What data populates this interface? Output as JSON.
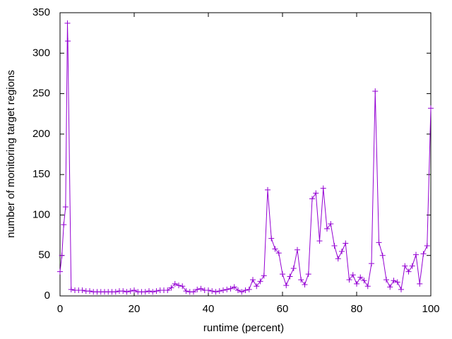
{
  "chart_data": {
    "type": "line",
    "xlabel": "runtime (percent)",
    "ylabel": "number of monitoring target regions",
    "xlim": [
      0,
      100
    ],
    "xticks": [
      0,
      20,
      40,
      60,
      80,
      100
    ],
    "ylim": [
      0,
      350
    ],
    "yticks": [
      0,
      50,
      100,
      150,
      200,
      250,
      300,
      350
    ],
    "series": [
      {
        "color": "#9400d3",
        "x": [
          0,
          0.5,
          1,
          1.5,
          2,
          2.1,
          3,
          4,
          5,
          6,
          7,
          8,
          9,
          10,
          11,
          12,
          13,
          14,
          15,
          16,
          17,
          18,
          19,
          20,
          21,
          22,
          23,
          24,
          25,
          26,
          27,
          28,
          29,
          30,
          31,
          32,
          33,
          34,
          35,
          36,
          37,
          38,
          39,
          40,
          41,
          42,
          43,
          44,
          45,
          46,
          47,
          48,
          49,
          50,
          51,
          52,
          53,
          54,
          55,
          56,
          57,
          58,
          59,
          60,
          61,
          62,
          63,
          64,
          65,
          66,
          67,
          68,
          69,
          70,
          71,
          72,
          73,
          74,
          75,
          76,
          77,
          78,
          79,
          80,
          81,
          82,
          83,
          84,
          85,
          86,
          87,
          88,
          89,
          90,
          91,
          92,
          93,
          94,
          95,
          96,
          97,
          98,
          99,
          100
        ],
        "values": [
          30,
          50,
          88,
          110,
          337,
          315,
          8,
          7,
          7,
          7,
          6,
          6,
          5,
          5,
          5,
          5,
          5,
          5,
          5,
          6,
          6,
          5,
          6,
          7,
          5,
          5,
          5,
          6,
          5,
          6,
          7,
          7,
          7,
          10,
          15,
          13,
          12,
          6,
          5,
          5,
          8,
          9,
          7,
          7,
          6,
          5,
          6,
          7,
          8,
          9,
          11,
          7,
          5,
          7,
          8,
          20,
          12,
          18,
          25,
          131,
          71,
          58,
          53,
          27,
          13,
          24,
          34,
          57,
          20,
          14,
          27,
          120,
          127,
          68,
          133,
          83,
          89,
          62,
          46,
          55,
          65,
          20,
          26,
          15,
          23,
          19,
          12,
          40,
          253,
          66,
          50,
          20,
          11,
          19,
          17,
          8,
          37,
          30,
          37,
          51,
          15,
          52,
          62,
          232
        ]
      }
    ]
  }
}
